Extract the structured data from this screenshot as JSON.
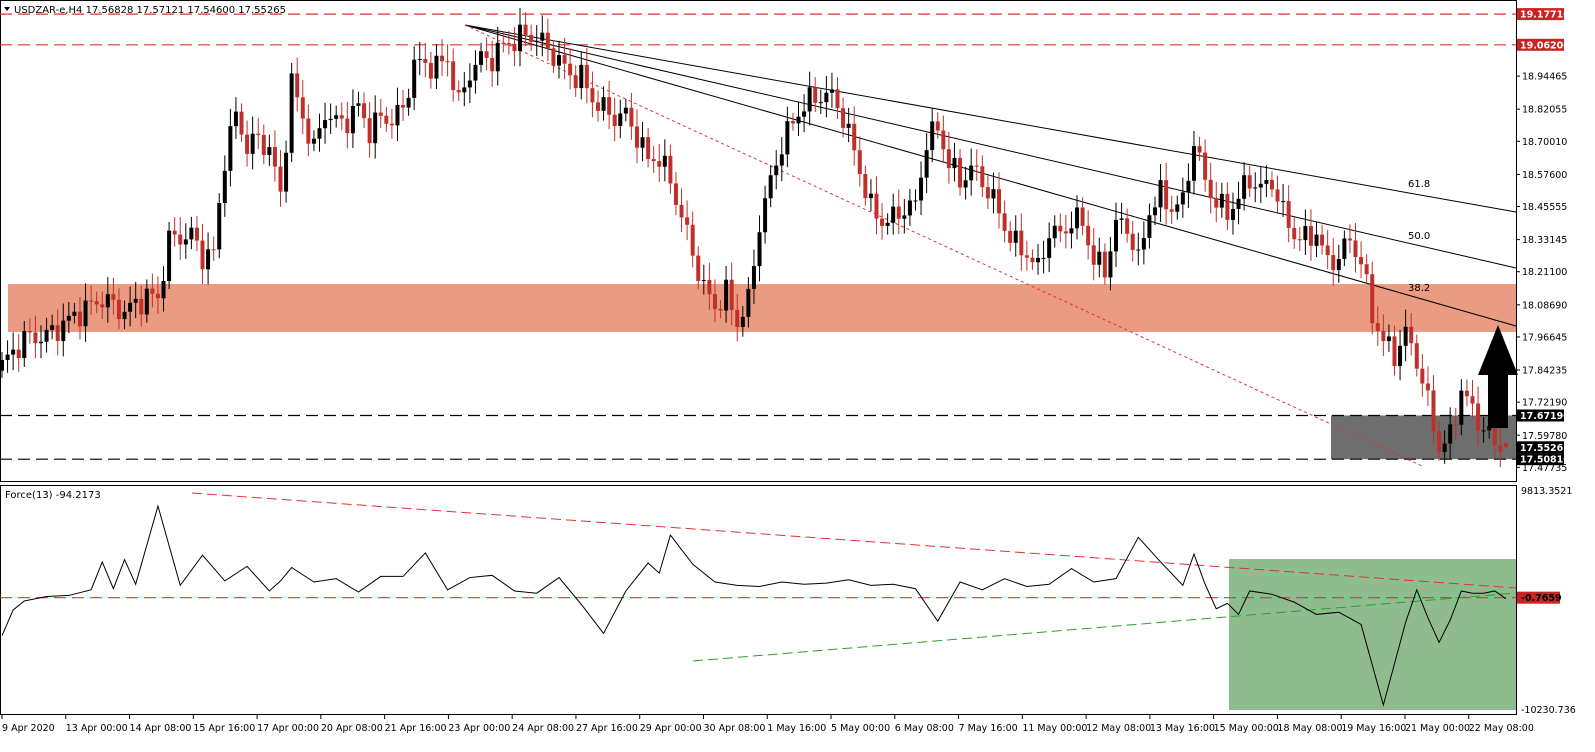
{
  "header": {
    "symbol_line": "USDZAR-e,H4  17.56828 17.57121 17.54600 17.55265"
  },
  "colors": {
    "bull": "#000000",
    "bear": "#c0302a",
    "level_line": "#dd3333",
    "resistance_zone": "#e9967a",
    "support_zone": "#6e6e6e",
    "force_zone": "#8fbc8f",
    "force_line": "#000000",
    "force_green_trend": "#2e9e2e",
    "price_label_bg": "#cc2222",
    "arrow": "#000000"
  },
  "price_axis": {
    "ticks": [
      "18.94465",
      "18.82055",
      "18.70010",
      "18.57600",
      "18.45555",
      "18.33145",
      "18.21100",
      "18.08690",
      "17.96645",
      "17.84235",
      "17.72190",
      "17.59780",
      "17.47735"
    ]
  },
  "level_labels": {
    "top_resistance": "19.17710",
    "upper_resistance": "19.06200",
    "zone_top_label": "17.67190",
    "current_price": "17.55265",
    "zone_bottom_label": "17.50810"
  },
  "fib_labels": {
    "f618": "61.8",
    "f500": "50.0",
    "f382": "38.2"
  },
  "force": {
    "title": "Force(13) -94.2173",
    "axis_top": "9813.3521",
    "axis_bottom": "-10230.736",
    "level_label": "-0.7659"
  },
  "time_axis": {
    "labels": [
      "9 Apr 2020",
      "13 Apr 00:00",
      "14 Apr 08:00",
      "15 Apr 16:00",
      "17 Apr 00:00",
      "20 Apr 08:00",
      "21 Apr 16:00",
      "23 Apr 00:00",
      "24 Apr 08:00",
      "27 Apr 16:00",
      "29 Apr 00:00",
      "30 Apr 08:00",
      "1 May 16:00",
      "5 May 00:00",
      "6 May 08:00",
      "7 May 16:00",
      "11 May 00:00",
      "12 May 08:00",
      "13 May 16:00",
      "15 May 00:00",
      "18 May 08:00",
      "19 May 16:00",
      "21 May 00:00",
      "22 May 08:00"
    ]
  },
  "chart_data": [
    {
      "type": "candlestick",
      "symbol": "USDZAR-e",
      "timeframe": "H4",
      "ohlc_last": {
        "open": 17.56828,
        "high": 17.57121,
        "low": 17.546,
        "close": 17.55265
      },
      "ylim": [
        17.43,
        19.23
      ],
      "horizontal_levels": [
        19.1771,
        19.062,
        17.6719,
        17.5081
      ],
      "resistance_zone": [
        17.985,
        18.165
      ],
      "support_zone": [
        17.5081,
        17.6719
      ],
      "fib_fan_anchor": {
        "time": "23 Apr 00:00",
        "price": 19.177
      },
      "fib_fan_levels": [
        "38.2",
        "50.0",
        "61.8"
      ],
      "close_path": [
        [
          0,
          17.86
        ],
        [
          4,
          17.96
        ],
        [
          8,
          17.97
        ],
        [
          14,
          18.06
        ],
        [
          18,
          18.11
        ],
        [
          22,
          18.06
        ],
        [
          26,
          18.12
        ],
        [
          28,
          18.11
        ],
        [
          30,
          18.33
        ],
        [
          34,
          18.35
        ],
        [
          36,
          18.27
        ],
        [
          38,
          18.28
        ],
        [
          40,
          18.64
        ],
        [
          42,
          18.8
        ],
        [
          44,
          18.68
        ],
        [
          46,
          18.71
        ],
        [
          48,
          18.67
        ],
        [
          50,
          18.5
        ],
        [
          52,
          18.92
        ],
        [
          54,
          18.79
        ],
        [
          56,
          18.67
        ],
        [
          58,
          18.81
        ],
        [
          60,
          18.77
        ],
        [
          62,
          18.78
        ],
        [
          64,
          18.83
        ],
        [
          66,
          18.74
        ],
        [
          68,
          18.79
        ],
        [
          70,
          18.78
        ],
        [
          72,
          18.82
        ],
        [
          74,
          18.99
        ],
        [
          76,
          18.99
        ],
        [
          78,
          18.98
        ],
        [
          80,
          19.01
        ],
        [
          82,
          18.84
        ],
        [
          84,
          18.96
        ],
        [
          86,
          19.01
        ],
        [
          88,
          19.01
        ],
        [
          90,
          19.06
        ],
        [
          92,
          19.08
        ],
        [
          94,
          19.1
        ],
        [
          96,
          19.09
        ],
        [
          98,
          19.05
        ],
        [
          100,
          19.0
        ],
        [
          102,
          18.95
        ],
        [
          104,
          18.94
        ],
        [
          106,
          18.86
        ],
        [
          108,
          18.82
        ],
        [
          110,
          18.79
        ],
        [
          112,
          18.8
        ],
        [
          114,
          18.72
        ],
        [
          116,
          18.63
        ],
        [
          118,
          18.64
        ],
        [
          120,
          18.55
        ],
        [
          122,
          18.42
        ],
        [
          124,
          18.28
        ],
        [
          126,
          18.15
        ],
        [
          128,
          18.08
        ],
        [
          130,
          18.13
        ],
        [
          132,
          18.02
        ],
        [
          134,
          18.1
        ],
        [
          136,
          18.39
        ],
        [
          138,
          18.55
        ],
        [
          140,
          18.69
        ],
        [
          142,
          18.77
        ],
        [
          144,
          18.84
        ],
        [
          146,
          18.86
        ],
        [
          148,
          18.88
        ],
        [
          150,
          18.84
        ],
        [
          152,
          18.73
        ],
        [
          154,
          18.59
        ],
        [
          156,
          18.45
        ],
        [
          158,
          18.4
        ],
        [
          160,
          18.41
        ],
        [
          162,
          18.45
        ],
        [
          164,
          18.46
        ],
        [
          166,
          18.7
        ],
        [
          168,
          18.75
        ],
        [
          170,
          18.62
        ],
        [
          172,
          18.55
        ],
        [
          174,
          18.6
        ],
        [
          176,
          18.55
        ],
        [
          178,
          18.48
        ],
        [
          180,
          18.38
        ],
        [
          182,
          18.31
        ],
        [
          184,
          18.28
        ],
        [
          186,
          18.22
        ],
        [
          188,
          18.36
        ],
        [
          190,
          18.35
        ],
        [
          192,
          18.4
        ],
        [
          194,
          18.4
        ],
        [
          196,
          18.25
        ],
        [
          198,
          18.22
        ],
        [
          200,
          18.39
        ],
        [
          202,
          18.38
        ],
        [
          204,
          18.25
        ],
        [
          206,
          18.44
        ],
        [
          208,
          18.5
        ],
        [
          210,
          18.45
        ],
        [
          212,
          18.47
        ],
        [
          214,
          18.7
        ],
        [
          216,
          18.55
        ],
        [
          218,
          18.47
        ],
        [
          220,
          18.43
        ],
        [
          222,
          18.49
        ],
        [
          224,
          18.56
        ],
        [
          226,
          18.52
        ],
        [
          228,
          18.55
        ],
        [
          230,
          18.43
        ],
        [
          232,
          18.35
        ],
        [
          234,
          18.33
        ],
        [
          236,
          18.36
        ],
        [
          238,
          18.24
        ],
        [
          240,
          18.27
        ],
        [
          242,
          18.33
        ],
        [
          244,
          18.25
        ],
        [
          246,
          18.05
        ],
        [
          248,
          17.95
        ],
        [
          250,
          17.9
        ],
        [
          252,
          17.98
        ],
        [
          254,
          17.88
        ],
        [
          256,
          17.72
        ],
        [
          258,
          17.55
        ],
        [
          260,
          17.59
        ],
        [
          262,
          17.77
        ],
        [
          264,
          17.69
        ],
        [
          266,
          17.62
        ],
        [
          268,
          17.57
        ],
        [
          270,
          17.55
        ]
      ]
    },
    {
      "type": "line",
      "name": "Force(13)",
      "last": -94.2173,
      "ylim": [
        -10230.736,
        9813.3521
      ],
      "zero_level": -0.7659,
      "x": [
        0,
        2,
        4,
        8,
        12,
        16,
        18,
        20,
        22,
        24,
        28,
        32,
        36,
        40,
        44,
        48,
        50,
        52,
        56,
        60,
        64,
        68,
        72,
        76,
        80,
        84,
        88,
        92,
        96,
        100,
        104,
        108,
        112,
        116,
        118,
        120,
        124,
        128,
        132,
        136,
        140,
        144,
        148,
        152,
        156,
        160,
        164,
        168,
        172,
        176,
        180,
        184,
        188,
        192,
        196,
        200,
        204,
        208,
        212,
        214,
        216,
        218,
        220,
        222,
        224,
        228,
        232,
        236,
        240,
        244,
        248,
        252,
        254,
        256,
        258,
        260,
        262,
        264,
        266,
        268,
        270
      ],
      "values": [
        -3400,
        -1100,
        -300,
        100,
        200,
        700,
        3200,
        800,
        3400,
        1200,
        8200,
        1100,
        3800,
        1500,
        2800,
        600,
        1500,
        2700,
        1400,
        1700,
        500,
        1900,
        1900,
        4000,
        700,
        1800,
        2000,
        600,
        400,
        1800,
        -600,
        -3200,
        600,
        3100,
        2200,
        5600,
        3000,
        1400,
        1100,
        1000,
        1400,
        1200,
        1300,
        1600,
        1100,
        1200,
        800,
        -2100,
        1400,
        700,
        1700,
        1000,
        1200,
        2600,
        1400,
        1700,
        5400,
        3200,
        1100,
        3900,
        1200,
        -1000,
        -500,
        -1500,
        600,
        300,
        -400,
        -1500,
        -1300,
        -2400,
        -9600,
        -2200,
        700,
        -1800,
        -4000,
        -2000,
        600,
        400,
        400,
        600,
        -94.2173
      ]
    }
  ]
}
